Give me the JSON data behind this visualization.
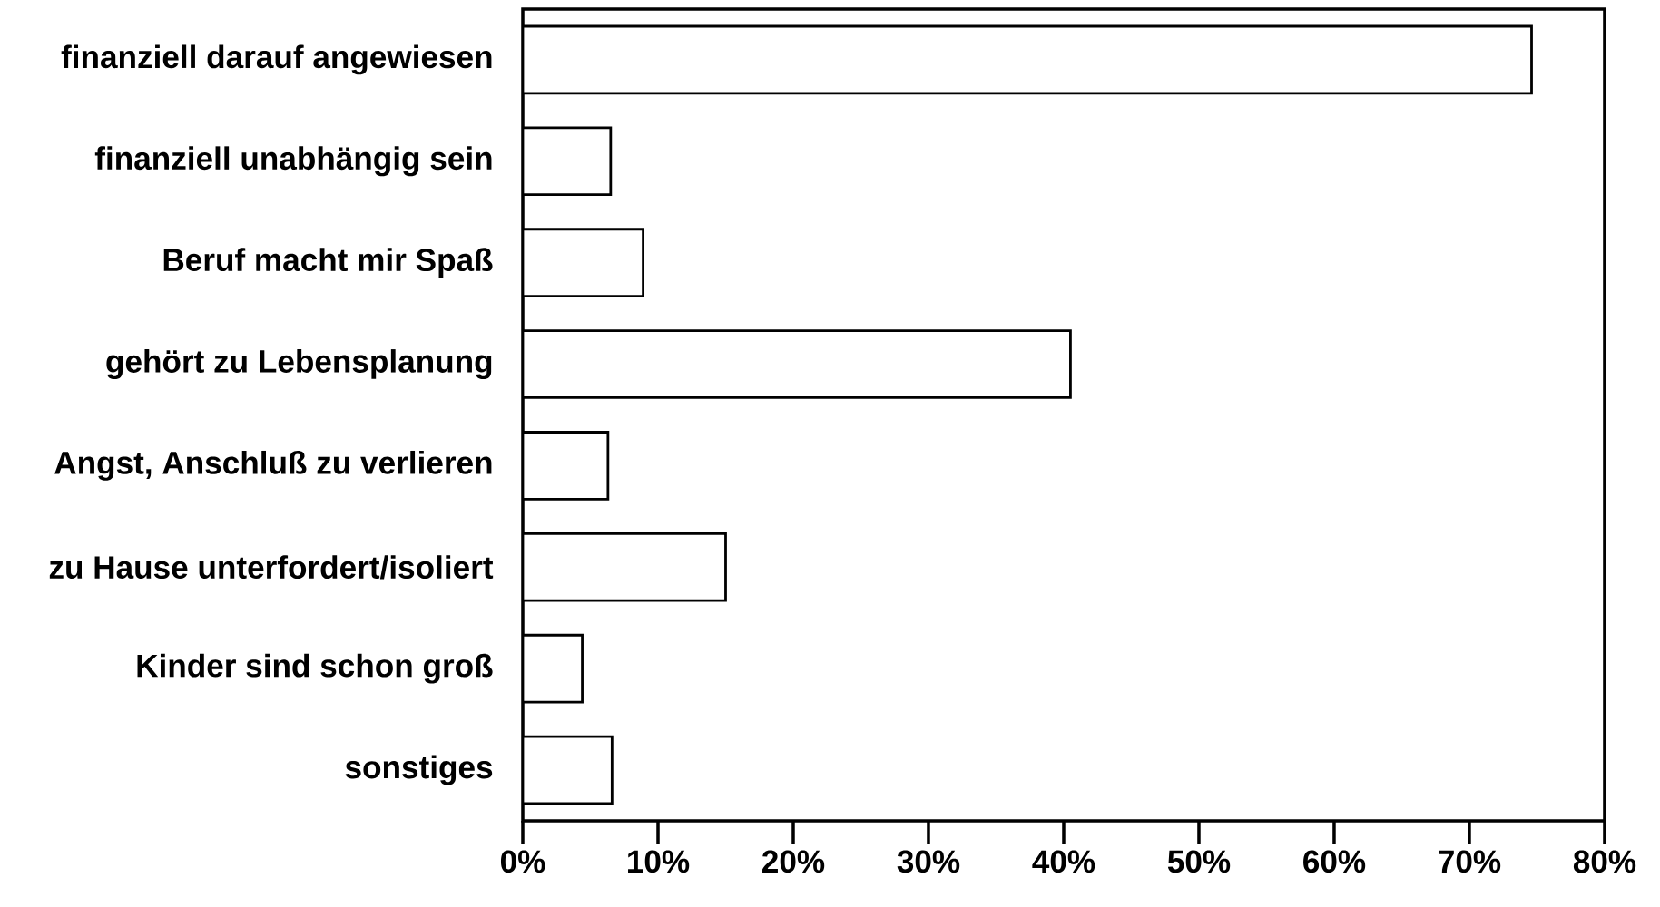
{
  "chart_data": {
    "type": "bar",
    "orientation": "horizontal",
    "categories": [
      "finanziell darauf angewiesen",
      "finanziell unabhängig sein",
      "Beruf macht mir Spaß",
      "gehört zu Lebensplanung",
      "Angst, Anschluß zu verlieren",
      "zu Hause unterfordert/isoliert",
      "Kinder sind schon groß",
      "sonstiges"
    ],
    "values": [
      74.6,
      6.5,
      8.9,
      40.5,
      6.3,
      15.0,
      4.4,
      6.6
    ],
    "color": "#ffffff",
    "xlim": [
      0,
      80
    ],
    "xticks": [
      {
        "value": 0,
        "label": "0%"
      },
      {
        "value": 10,
        "label": "10%"
      },
      {
        "value": 20,
        "label": "20%"
      },
      {
        "value": 30,
        "label": "30%"
      },
      {
        "value": 40,
        "label": "40%"
      },
      {
        "value": 50,
        "label": "50%"
      },
      {
        "value": 60,
        "label": "60%"
      },
      {
        "value": 70,
        "label": "70%"
      },
      {
        "value": 80,
        "label": "80%"
      }
    ],
    "grid": false
  }
}
